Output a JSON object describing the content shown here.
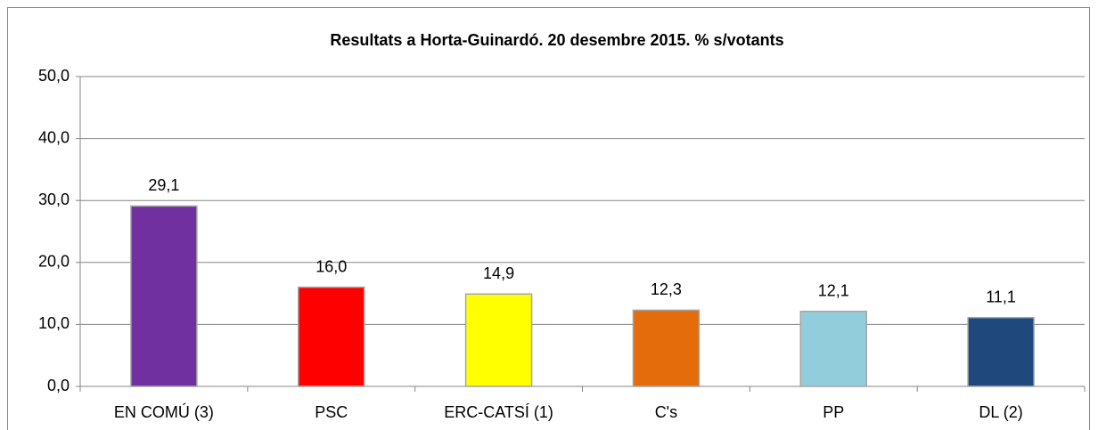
{
  "chart_data": {
    "type": "bar",
    "title": "Resultats a Horta-Guinardó. 20 desembre 2015. % s/votants",
    "categories": [
      "EN COMÚ (3)",
      "PSC",
      "ERC-CATSÍ (1)",
      "C's",
      "PP",
      "DL (2)"
    ],
    "values": [
      29.1,
      16.0,
      14.9,
      12.3,
      12.1,
      11.1
    ],
    "value_labels": [
      "29,1",
      "16,0",
      "14,9",
      "12,3",
      "12,1",
      "11,1"
    ],
    "colors": [
      "#7030a0",
      "#ff0000",
      "#ffff00",
      "#e46c0a",
      "#92cddc",
      "#1f497d"
    ],
    "ylim": [
      0,
      50
    ],
    "yticks": [
      {
        "value": 0,
        "label": "0,0"
      },
      {
        "value": 10,
        "label": "10,0"
      },
      {
        "value": 20,
        "label": "20,0"
      },
      {
        "value": 30,
        "label": "30,0"
      },
      {
        "value": 40,
        "label": "40,0"
      },
      {
        "value": 50,
        "label": "50,0"
      }
    ],
    "grid": true
  }
}
